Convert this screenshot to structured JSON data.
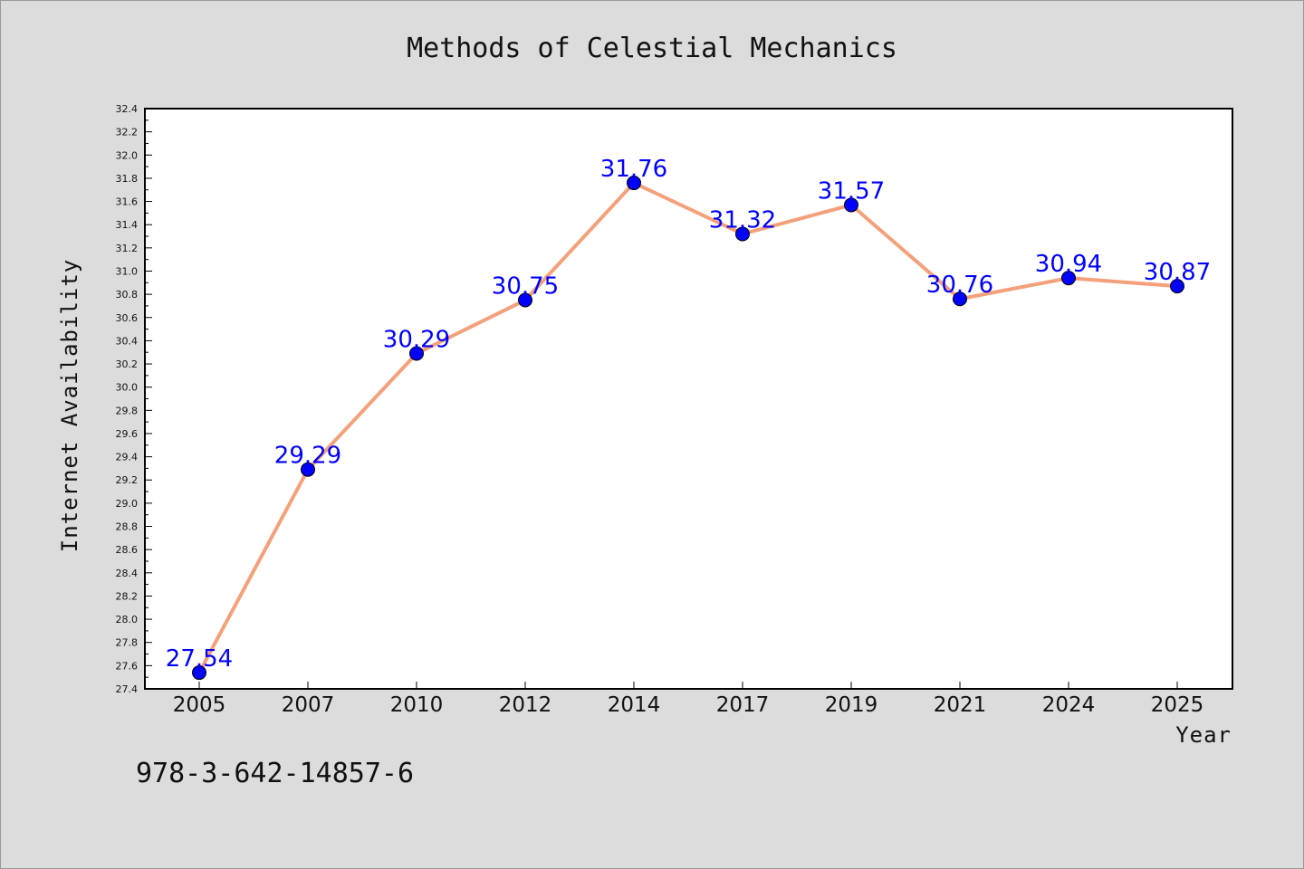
{
  "chart_data": {
    "type": "line",
    "title": "Methods of Celestial Mechanics",
    "xlabel": "Year",
    "ylabel": "Internet Availability",
    "categories": [
      "2005",
      "2007",
      "2010",
      "2012",
      "2014",
      "2017",
      "2019",
      "2021",
      "2024",
      "2025"
    ],
    "series": [
      {
        "values": [
          27.54,
          29.29,
          30.29,
          30.75,
          31.76,
          31.32,
          31.57,
          30.76,
          30.94,
          30.87
        ]
      }
    ],
    "data_labels": [
      "27.54",
      "29.29",
      "30.29",
      "30.75",
      "31.76",
      "31.32",
      "31.57",
      "30.76",
      "30.94",
      "30.87"
    ],
    "ylim": [
      27.4,
      32.4
    ],
    "yticks": [
      "27.4",
      "27.6",
      "27.8",
      "28.0",
      "28.2",
      "28.4",
      "28.6",
      "28.8",
      "29.0",
      "29.2",
      "29.4",
      "29.6",
      "29.8",
      "30.0",
      "30.2",
      "30.4",
      "30.6",
      "30.8",
      "31.0",
      "31.2",
      "31.4",
      "31.6",
      "31.8",
      "32.0",
      "32.2",
      "32.4"
    ],
    "grid": false,
    "line_color": "#f4a07a",
    "marker_color": "#0000ff",
    "label_color": "#0000ff",
    "plot_background": "#ffffff",
    "page_background": "#dcdcdc"
  },
  "footer": {
    "isbn": "978-3-642-14857-6"
  }
}
